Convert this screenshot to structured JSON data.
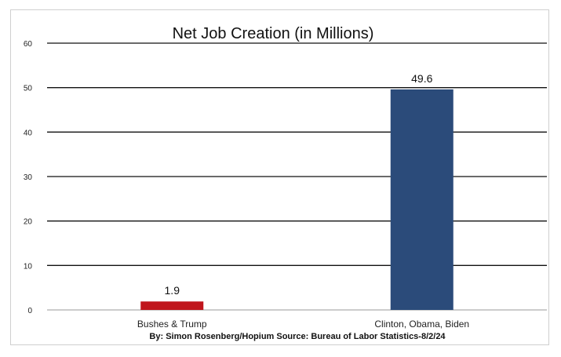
{
  "chart_data": {
    "type": "bar",
    "title": "Net Job Creation (in Millions)",
    "categories": [
      "Bushes & Trump",
      "Clinton, Obama, Biden"
    ],
    "values": [
      1.9,
      49.6
    ],
    "data_labels": [
      "1.9",
      "49.6"
    ],
    "colors": [
      "#c0161c",
      "#2b4b7a"
    ],
    "yticks": [
      0,
      10,
      20,
      30,
      40,
      50,
      60
    ],
    "ylim": [
      0,
      60
    ],
    "xlabel": "",
    "ylabel": "",
    "grid": true,
    "footer": "By: Simon Rosenberg/Hopium Source: Bureau of Labor Statistics-8/2/24"
  }
}
